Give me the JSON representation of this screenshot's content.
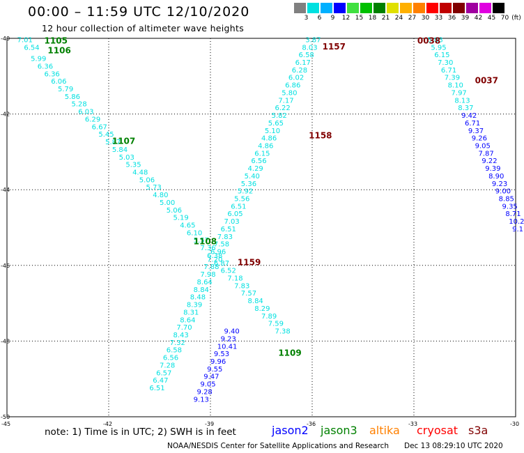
{
  "title": "00:00 – 11:59 UTC 12/10/2020",
  "subtitle": "12 hour collection of altimeter wave heights",
  "color_scale": {
    "unit_label": "(ft)",
    "labels": [
      "3",
      "6",
      "9",
      "12",
      "15",
      "18",
      "21",
      "24",
      "27",
      "30",
      "33",
      "36",
      "39",
      "42",
      "45",
      "70"
    ],
    "colors": [
      "#808080",
      "#00e0e0",
      "#00b0ff",
      "#0000ff",
      "#40e040",
      "#00c000",
      "#008000",
      "#e0e000",
      "#ffb000",
      "#ff8000",
      "#ff0000",
      "#c00000",
      "#800000",
      "#a000a0",
      "#e000e0",
      "#000000"
    ]
  },
  "axes": {
    "lat_labels": [
      "-40",
      "-42",
      "-44",
      "-46",
      "-48",
      "-50"
    ],
    "lon_labels": [
      "-45",
      "-42",
      "-39",
      "-36",
      "-33",
      "-30"
    ],
    "lat_values": [
      -40,
      -42,
      -44,
      -46,
      -48,
      -50
    ],
    "lon_values": [
      -45,
      -42,
      -39,
      -36,
      -33,
      -30
    ]
  },
  "tracks": [
    {
      "satellite": "jason3",
      "color": "#00e0e0",
      "pts": [
        [
          -44.7,
          -40.1,
          "7.01"
        ],
        [
          -44.5,
          -40.3,
          "6.54"
        ],
        [
          -44.3,
          -40.6,
          "5.99"
        ],
        [
          -44.1,
          -40.8,
          "6.36"
        ],
        [
          -43.9,
          -41.0,
          "6.36"
        ],
        [
          -43.7,
          -41.2,
          "6.06"
        ],
        [
          -43.5,
          -41.4,
          "5.79"
        ],
        [
          -43.3,
          -41.6,
          "5.86"
        ],
        [
          -43.1,
          -41.8,
          "5.28"
        ],
        [
          -42.9,
          -42.0,
          "6.03"
        ],
        [
          -42.7,
          -42.2,
          "6.29"
        ],
        [
          -42.5,
          -42.4,
          "6.67"
        ],
        [
          -42.3,
          -42.6,
          "5.45"
        ],
        [
          -42.1,
          -42.8,
          "5.87"
        ],
        [
          -41.9,
          -43.0,
          "5.84"
        ],
        [
          -41.7,
          -43.2,
          "5.03"
        ],
        [
          -41.5,
          -43.4,
          "5.35"
        ],
        [
          -41.3,
          -43.6,
          "4.48"
        ],
        [
          -41.1,
          -43.8,
          "5.06"
        ],
        [
          -40.9,
          -44.0,
          "5.73"
        ],
        [
          -40.7,
          -44.2,
          "4.80"
        ],
        [
          -40.5,
          -44.4,
          "5.00"
        ],
        [
          -40.3,
          -44.6,
          "5.06"
        ],
        [
          -40.1,
          -44.8,
          "5.19"
        ],
        [
          -39.9,
          -45.0,
          "4.65"
        ],
        [
          -39.7,
          -45.2,
          "6.10"
        ],
        [
          -39.5,
          -45.4,
          "5.57"
        ],
        [
          -39.3,
          -45.6,
          "7.36"
        ],
        [
          -39.1,
          -45.8,
          "6.38"
        ],
        [
          -38.9,
          -46.0,
          "6.87"
        ],
        [
          -38.7,
          -46.2,
          "6.52"
        ],
        [
          -38.5,
          -46.4,
          "7.18"
        ],
        [
          -38.3,
          -46.6,
          "7.83"
        ],
        [
          -38.1,
          -46.8,
          "7.57"
        ],
        [
          -37.9,
          -47.0,
          "8.84"
        ],
        [
          -37.7,
          -47.2,
          "8.29"
        ],
        [
          -37.5,
          -47.4,
          "7.89"
        ],
        [
          -37.3,
          -47.6,
          "7.59"
        ],
        [
          -37.1,
          -47.8,
          "7.38"
        ]
      ]
    },
    {
      "satellite": "jason3",
      "color": "#00e0e0",
      "pts": [
        [
          -36.2,
          -40.1,
          "3.87"
        ],
        [
          -36.3,
          -40.3,
          "8.03"
        ],
        [
          -36.4,
          -40.5,
          "6.58"
        ],
        [
          -36.5,
          -40.7,
          "6.17"
        ],
        [
          -36.6,
          -40.9,
          "6.28"
        ],
        [
          -36.7,
          -41.1,
          "6.02"
        ],
        [
          -36.8,
          -41.3,
          "6.86"
        ],
        [
          -36.9,
          -41.5,
          "5.80"
        ],
        [
          -37.0,
          -41.7,
          "7.17"
        ],
        [
          -37.1,
          -41.9,
          "6.22"
        ],
        [
          -37.2,
          -42.1,
          "5.82"
        ],
        [
          -37.3,
          -42.3,
          "5.65"
        ],
        [
          -37.4,
          -42.5,
          "5.10"
        ],
        [
          -37.5,
          -42.7,
          "4.86"
        ],
        [
          -37.6,
          -42.9,
          "4.86"
        ],
        [
          -37.7,
          -43.1,
          "6.15"
        ],
        [
          -37.8,
          -43.3,
          "6.56"
        ],
        [
          -37.9,
          -43.5,
          "4.29"
        ],
        [
          -38.0,
          -43.7,
          "5.40"
        ],
        [
          -38.1,
          -43.9,
          "5.36"
        ],
        [
          -38.2,
          -44.1,
          "5.92"
        ],
        [
          -38.3,
          -44.3,
          "5.56"
        ],
        [
          -38.4,
          -44.5,
          "6.51"
        ],
        [
          -38.5,
          -44.7,
          "6.05"
        ],
        [
          -38.6,
          -44.9,
          "7.03"
        ],
        [
          -38.7,
          -45.1,
          "6.51"
        ],
        [
          -38.8,
          -45.3,
          "7.83"
        ],
        [
          -38.9,
          -45.5,
          "7.58"
        ],
        [
          -39.0,
          -45.7,
          "6.96"
        ],
        [
          -39.1,
          -45.9,
          "7.20"
        ],
        [
          -39.2,
          -46.1,
          "7.88"
        ],
        [
          -39.3,
          -46.3,
          "7.98"
        ],
        [
          -39.4,
          -46.5,
          "8.64"
        ],
        [
          -39.5,
          -46.7,
          "8.84"
        ],
        [
          -39.6,
          -46.9,
          "8.48"
        ],
        [
          -39.7,
          -47.1,
          "8.39"
        ],
        [
          -39.8,
          -47.3,
          "8.31"
        ],
        [
          -39.9,
          -47.5,
          "8.64"
        ],
        [
          -40.0,
          -47.7,
          "7.70"
        ],
        [
          -40.1,
          -47.9,
          "8.43"
        ],
        [
          -40.2,
          -48.1,
          "7.32"
        ],
        [
          -40.3,
          -48.3,
          "6.58"
        ],
        [
          -40.4,
          -48.5,
          "6.56"
        ],
        [
          -40.5,
          -48.7,
          "7.28"
        ],
        [
          -40.6,
          -48.9,
          "6.57"
        ],
        [
          -40.7,
          -49.1,
          "6.47"
        ],
        [
          -40.8,
          -49.3,
          "6.51"
        ]
      ]
    },
    {
      "satellite": "jason2",
      "color": "#0000ff",
      "pts": [
        [
          -38.6,
          -47.8,
          "9.40"
        ],
        [
          -38.7,
          -48.0,
          "9.23"
        ],
        [
          -38.8,
          -48.2,
          "10.41"
        ],
        [
          -38.9,
          -48.4,
          "9.53"
        ],
        [
          -39.0,
          -48.6,
          "9.96"
        ],
        [
          -39.1,
          -48.8,
          "9.55"
        ],
        [
          -39.2,
          -49.0,
          "9.47"
        ],
        [
          -39.3,
          -49.2,
          "9.05"
        ],
        [
          -39.4,
          -49.4,
          "9.28"
        ],
        [
          -39.5,
          -49.6,
          "9.13"
        ]
      ]
    },
    {
      "satellite": "jason3",
      "color": "#00e0e0",
      "pts": [
        [
          -32.6,
          -40.1,
          "5.83"
        ],
        [
          -32.5,
          -40.3,
          "5.95"
        ],
        [
          -32.4,
          -40.5,
          "6.15"
        ],
        [
          -32.3,
          -40.7,
          "7.30"
        ],
        [
          -32.2,
          -40.9,
          "6.71"
        ],
        [
          -32.1,
          -41.1,
          "7.39"
        ],
        [
          -32.0,
          -41.3,
          "8.10"
        ],
        [
          -31.9,
          -41.5,
          "7.97"
        ],
        [
          -31.8,
          -41.7,
          "8.13"
        ],
        [
          -31.7,
          -41.9,
          "8.37"
        ]
      ]
    },
    {
      "satellite": "jason2",
      "color": "#0000ff",
      "pts": [
        [
          -31.6,
          -42.1,
          "9.42"
        ],
        [
          -31.5,
          -42.3,
          "6.71"
        ],
        [
          -31.4,
          -42.5,
          "9.37"
        ],
        [
          -31.3,
          -42.7,
          "9.26"
        ],
        [
          -31.2,
          -42.9,
          "9.05"
        ],
        [
          -31.1,
          -43.1,
          "7.87"
        ],
        [
          -31.0,
          -43.3,
          "9.22"
        ],
        [
          -30.9,
          -43.5,
          "9.39"
        ],
        [
          -30.8,
          -43.7,
          "8.90"
        ],
        [
          -30.7,
          -43.9,
          "9.23"
        ],
        [
          -30.6,
          -44.1,
          "9.00"
        ],
        [
          -30.5,
          -44.3,
          "8.85"
        ],
        [
          -30.4,
          -44.5,
          "9.35"
        ],
        [
          -30.3,
          -44.7,
          "8.71"
        ],
        [
          -30.2,
          -44.9,
          "10.2"
        ],
        [
          -30.1,
          -45.1,
          "9.1"
        ]
      ]
    }
  ],
  "time_labels": [
    {
      "text": "1105",
      "color": "#008000",
      "lon": -43.9,
      "lat": -40.05
    },
    {
      "text": "1106",
      "color": "#008000",
      "lon": -43.8,
      "lat": -40.3
    },
    {
      "text": "1107",
      "color": "#008000",
      "lon": -41.9,
      "lat": -42.7
    },
    {
      "text": "1108",
      "color": "#008000",
      "lon": -39.5,
      "lat": -45.35
    },
    {
      "text": "1109",
      "color": "#008000",
      "lon": -37.0,
      "lat": -48.3
    },
    {
      "text": "1157",
      "color": "#800000",
      "lon": -35.7,
      "lat": -40.2
    },
    {
      "text": "1158",
      "color": "#800000",
      "lon": -36.1,
      "lat": -42.55
    },
    {
      "text": "1159",
      "color": "#800000",
      "lon": -38.2,
      "lat": -45.9
    },
    {
      "text": "0038",
      "color": "#800000",
      "lon": -32.9,
      "lat": -40.05
    },
    {
      "text": "0037",
      "color": "#800000",
      "lon": -31.2,
      "lat": -41.1
    }
  ],
  "note": "note: 1) Time is in UTC; 2) SWH is in feet",
  "legend": [
    {
      "name": "jason2",
      "color": "#0000ff"
    },
    {
      "name": "jason3",
      "color": "#008000"
    },
    {
      "name": "altika",
      "color": "#ff8000"
    },
    {
      "name": "cryosat",
      "color": "#ff0000"
    },
    {
      "name": "s3a",
      "color": "#800000"
    }
  ],
  "footer": "NOAA/NESDIS Center for Satellite Applications and Research",
  "footer_time": "Dec 13 08:29:10 UTC 2020"
}
